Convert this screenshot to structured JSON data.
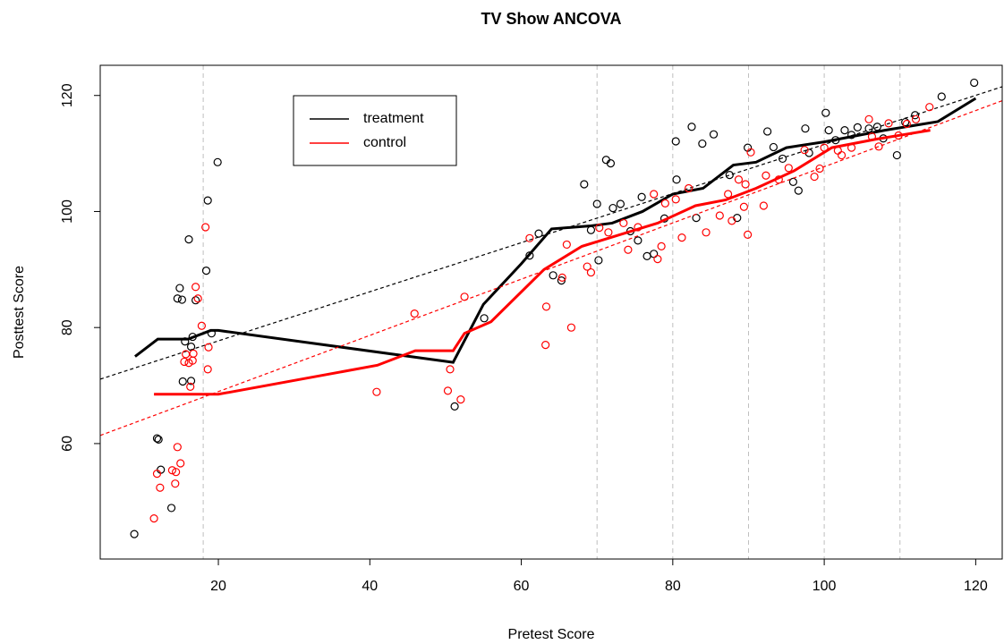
{
  "chart_data": {
    "type": "scatter",
    "title": "TV Show ANCOVA",
    "x_label": "Pretest Score",
    "y_label": "Posttest Score",
    "xlim": [
      4.4,
      123.5
    ],
    "ylim": [
      40.1,
      125.2
    ],
    "xticks": [
      20,
      40,
      60,
      80,
      100,
      120
    ],
    "yticks": [
      60,
      80,
      100,
      120
    ],
    "vlines": [
      18,
      70,
      80,
      90,
      100,
      110
    ],
    "vline_color": "#bebebe",
    "legend": "top-left",
    "series": [
      {
        "name": "treatment",
        "color": "#000000",
        "x": [
          8.9,
          11.9,
          12.1,
          12.4,
          13.8,
          14.6,
          14.9,
          15.2,
          15.3,
          15.6,
          16.1,
          16.4,
          16.4,
          16.6,
          17,
          18.4,
          18.6,
          19.1,
          19.9,
          51.2,
          55.1,
          61.1,
          62.3,
          64.2,
          65.3,
          68.3,
          69.2,
          70,
          70.2,
          71.2,
          71.8,
          72.1,
          73.1,
          74.4,
          75.4,
          75.9,
          76.6,
          77.5,
          78.9,
          80.4,
          80.5,
          82.5,
          83.1,
          83.9,
          85.4,
          87.5,
          88.5,
          89.9,
          92.5,
          93.3,
          94.5,
          95.9,
          96.6,
          97.5,
          98,
          100.2,
          100.6,
          101.5,
          102.7,
          103.6,
          104.4,
          105.9,
          107,
          107.8,
          109.6,
          110.7,
          112,
          115.5,
          119.8
        ],
        "values": [
          44.4,
          60.9,
          60.7,
          55.5,
          48.9,
          85,
          86.8,
          84.8,
          70.7,
          77.6,
          95.2,
          70.8,
          76.7,
          78.4,
          84.7,
          89.8,
          101.9,
          79,
          108.5,
          66.4,
          81.6,
          92.4,
          96.2,
          89,
          88.1,
          104.7,
          96.8,
          101.3,
          91.6,
          108.9,
          108.3,
          100.6,
          101.3,
          96.6,
          95,
          102.5,
          92.3,
          92.7,
          98.8,
          112.1,
          105.5,
          114.6,
          98.9,
          111.7,
          113.3,
          106.3,
          98.9,
          111,
          113.8,
          111.1,
          109.1,
          105.1,
          103.6,
          114.3,
          110.1,
          117,
          114,
          112.3,
          114,
          113.2,
          114.5,
          114.3,
          114.6,
          112.6,
          109.7,
          115.4,
          116.6,
          119.8,
          122.2
        ],
        "smooth_x": [
          9,
          12,
          16,
          19,
          20,
          51,
          55,
          60,
          64,
          69,
          72,
          76,
          80,
          84,
          88,
          91,
          95,
          100,
          104,
          108,
          115,
          120
        ],
        "smooth_values": [
          75,
          78,
          78,
          79.5,
          79.5,
          74,
          84,
          91,
          97,
          97.5,
          98,
          100,
          103,
          104,
          108,
          108.5,
          111,
          112,
          113,
          114,
          115.5,
          119.5
        ],
        "fit_x": [
          4.4,
          123.5
        ],
        "fit_values": [
          71.1,
          121.5
        ]
      },
      {
        "name": "control",
        "color": "#ff0000",
        "x": [
          11.5,
          11.9,
          12.3,
          13.9,
          14.3,
          14.4,
          14.6,
          15,
          15.5,
          15.7,
          16.1,
          16.3,
          16.6,
          16.7,
          17,
          17.3,
          17.8,
          18.3,
          18.6,
          18.7,
          40.9,
          45.9,
          50.3,
          50.6,
          52,
          52.5,
          61.1,
          63.2,
          63.3,
          65.4,
          66,
          66.6,
          68.7,
          69.2,
          70.3,
          71.5,
          73.5,
          74.1,
          75.4,
          77.5,
          78,
          78.5,
          79,
          80.4,
          81.2,
          82.1,
          84.4,
          86.2,
          87.3,
          87.8,
          88.7,
          89.4,
          89.6,
          89.9,
          90.3,
          92,
          92.3,
          94,
          95.3,
          97.4,
          98.7,
          99.4,
          100,
          101.8,
          102.3,
          103.6,
          105.9,
          106.3,
          107.2,
          108.5,
          109.8,
          110.9,
          112.1,
          113.9
        ],
        "values": [
          47.1,
          54.8,
          52.4,
          55.4,
          53.1,
          55.1,
          59.4,
          56.6,
          74.1,
          75.4,
          73.9,
          69.8,
          74.3,
          75.5,
          87,
          85,
          80.3,
          97.3,
          72.8,
          76.6,
          68.9,
          82.4,
          69.1,
          72.8,
          67.6,
          85.3,
          95.4,
          77,
          83.6,
          88.6,
          94.3,
          80,
          90.5,
          89.5,
          97.2,
          96.4,
          98,
          93.4,
          97.3,
          103,
          91.8,
          94,
          101.4,
          102.1,
          95.5,
          104,
          96.4,
          99.3,
          103,
          98.4,
          105.5,
          100.8,
          104.7,
          96,
          110.2,
          101,
          106.2,
          105.5,
          107.5,
          110.6,
          106,
          107.4,
          111,
          110.5,
          109.7,
          111,
          115.9,
          112.9,
          111.2,
          115.2,
          113.1,
          115.1,
          115.9,
          118
        ],
        "smooth_x": [
          11.5,
          17,
          20,
          41,
          46,
          51,
          52.5,
          56,
          63,
          68,
          73,
          78,
          83,
          87,
          91,
          96,
          101,
          107,
          114
        ],
        "smooth_values": [
          68.5,
          68.5,
          68.5,
          73.5,
          76,
          76,
          79,
          81,
          90,
          94,
          96,
          98,
          101,
          102,
          104,
          107,
          111,
          112.5,
          114
        ],
        "fit_x": [
          4.4,
          123.5
        ],
        "fit_values": [
          61.4,
          119.1
        ]
      }
    ]
  }
}
